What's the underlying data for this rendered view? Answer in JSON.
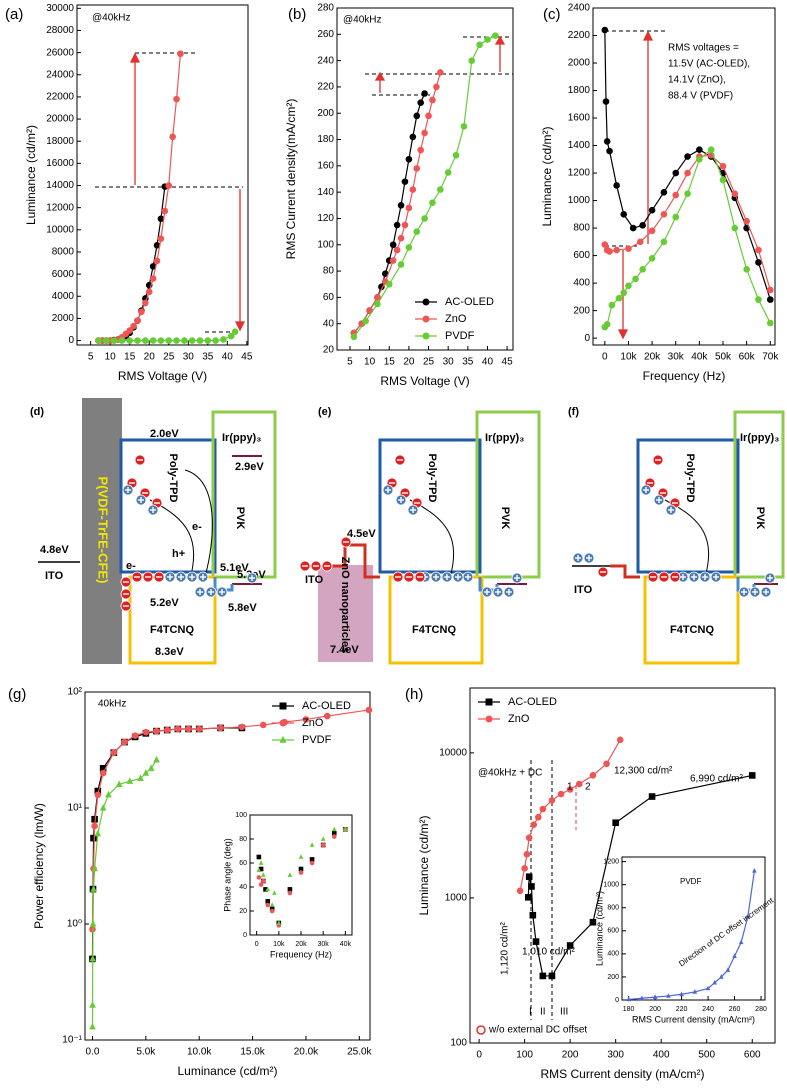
{
  "chart_data": [
    {
      "type": "line",
      "label": "(a)",
      "xlabel": "RMS Voltage (V)",
      "ylabel": "Luminance (cd/m²)",
      "annotations": [
        "@40kHz"
      ],
      "xlim": [
        1.5,
        45.3
      ],
      "xticks": [
        5,
        10,
        15,
        20,
        25,
        30,
        35,
        40,
        45
      ],
      "ylim": [
        -400,
        30300
      ],
      "yticks": [
        0,
        2000,
        4000,
        6000,
        8000,
        10000,
        12000,
        14000,
        16000,
        18000,
        20000,
        22000,
        24000,
        26000,
        28000,
        30000
      ],
      "series": [
        {
          "color": "#000000",
          "marker": "circle",
          "x": [
            7,
            8,
            9,
            10,
            11,
            12,
            13,
            14,
            15,
            16,
            17,
            18,
            19,
            20,
            21,
            22,
            23,
            24
          ],
          "values": [
            0,
            0,
            0,
            0,
            50,
            100,
            200,
            400,
            700,
            1200,
            1800,
            2700,
            3800,
            5000,
            6700,
            8600,
            11000,
            13900
          ]
        },
        {
          "color": "#f05555",
          "marker": "circle",
          "x": [
            7,
            8,
            9,
            10,
            11,
            12,
            13,
            14,
            15,
            16,
            17,
            18,
            19,
            20,
            21,
            22,
            23,
            24,
            25,
            26,
            27,
            28
          ],
          "values": [
            0,
            0,
            0,
            0,
            0,
            100,
            300,
            600,
            900,
            1300,
            1800,
            2600,
            3400,
            4400,
            5600,
            7200,
            9200,
            11700,
            14000,
            18400,
            21800,
            25900
          ]
        },
        {
          "color": "#66cc33",
          "marker": "circle",
          "x": [
            7,
            9,
            11,
            13,
            15,
            17,
            19,
            21,
            23,
            25,
            27,
            29,
            31,
            33,
            35,
            37,
            39,
            41,
            42
          ],
          "values": [
            0,
            0,
            0,
            0,
            0,
            0,
            0,
            0,
            0,
            0,
            0,
            0,
            0,
            0,
            0,
            0,
            100,
            400,
            800
          ]
        }
      ]
    },
    {
      "type": "line",
      "label": "(b)",
      "xlabel": "RMS Voltage (V)",
      "ylabel": "RMS Current density(mA/cm²)",
      "annotations": [
        "@40kHz"
      ],
      "legend": "lower right",
      "xlim": [
        1.7,
        46.5
      ],
      "xticks": [
        5,
        10,
        15,
        20,
        25,
        30,
        35,
        40,
        45
      ],
      "ylim": [
        20,
        280
      ],
      "yticks": [
        20,
        40,
        60,
        80,
        100,
        120,
        140,
        160,
        180,
        200,
        220,
        240,
        260,
        280
      ],
      "series": [
        {
          "name": "AC-OLED",
          "color": "#000000",
          "marker": "circle",
          "x": [
            6,
            8,
            10,
            12,
            13,
            14,
            15,
            16,
            17,
            18,
            19,
            20,
            21,
            22,
            23,
            24
          ],
          "values": [
            33,
            40,
            50,
            60,
            68,
            78,
            88,
            100,
            115,
            130,
            148,
            165,
            182,
            198,
            208,
            215
          ]
        },
        {
          "name": "ZnO",
          "color": "#f05555",
          "marker": "circle",
          "x": [
            6,
            8,
            10,
            12,
            14,
            16,
            17,
            18,
            19,
            20,
            21,
            22,
            23,
            24,
            25,
            26,
            27,
            28
          ],
          "values": [
            33,
            40,
            50,
            60,
            72,
            88,
            96,
            105,
            115,
            128,
            142,
            158,
            172,
            185,
            198,
            210,
            220,
            231
          ]
        },
        {
          "name": "PVDF",
          "color": "#66cc33",
          "marker": "circle",
          "x": [
            6,
            9,
            12,
            15,
            18,
            20,
            22,
            24,
            26,
            28,
            30,
            32,
            34,
            36,
            38,
            40,
            42
          ],
          "values": [
            30,
            42,
            55,
            70,
            85,
            98,
            110,
            120,
            132,
            142,
            155,
            168,
            190,
            240,
            252,
            256,
            259
          ]
        }
      ]
    },
    {
      "type": "line",
      "label": "(c)",
      "xlabel": "Frequency (Hz)",
      "ylabel": "Luminance (cd/m²)",
      "annotations": [
        "RMS voltages =",
        "11.5V (AC-OLED),",
        "14.1V (ZnO),",
        "88.4 V (PVDF)"
      ],
      "xlim": [
        -5000,
        72000
      ],
      "xticks": [
        0,
        {
          "value": 10000,
          "label": "10k"
        },
        {
          "value": 20000,
          "label": "20k"
        },
        {
          "value": 30000,
          "label": "30k"
        },
        {
          "value": 40000,
          "label": "40k"
        },
        {
          "value": 50000,
          "label": "50k"
        },
        {
          "value": 60000,
          "label": "60k"
        },
        {
          "value": 70000,
          "label": "70k"
        }
      ],
      "ylim": [
        -50,
        2400
      ],
      "yticks": [
        0,
        200,
        400,
        600,
        800,
        1000,
        1200,
        1400,
        1600,
        1800,
        2000,
        2200,
        2400
      ],
      "series": [
        {
          "color": "#000000",
          "marker": "circle",
          "x": [
            0,
            500,
            1000,
            2000,
            5000,
            8000,
            12000,
            16000,
            20000,
            25000,
            30000,
            35000,
            40000,
            45000,
            50000,
            55000,
            60000,
            65000,
            70000
          ],
          "values": [
            2240,
            1720,
            1430,
            1360,
            1110,
            900,
            800,
            820,
            930,
            1060,
            1200,
            1320,
            1370,
            1320,
            1200,
            1020,
            800,
            550,
            280
          ]
        },
        {
          "color": "#f05555",
          "marker": "circle",
          "x": [
            0,
            1000,
            2000,
            5000,
            10000,
            15000,
            20000,
            25000,
            30000,
            35000,
            40000,
            45000,
            50000,
            55000,
            60000,
            65000,
            70000
          ],
          "values": [
            680,
            640,
            630,
            640,
            650,
            700,
            780,
            900,
            1040,
            1200,
            1320,
            1330,
            1250,
            1050,
            850,
            640,
            350
          ]
        },
        {
          "color": "#66cc33",
          "marker": "circle",
          "x": [
            0,
            1000,
            3000,
            6000,
            8000,
            10000,
            13000,
            16000,
            20000,
            25000,
            30000,
            35000,
            40000,
            45000,
            50000,
            55000,
            60000,
            65000,
            70000
          ],
          "values": [
            80,
            100,
            240,
            290,
            330,
            380,
            430,
            500,
            580,
            700,
            880,
            1050,
            1300,
            1370,
            1150,
            800,
            500,
            280,
            110
          ]
        }
      ]
    },
    {
      "type": "line",
      "label": "(g)",
      "xlabel": "Luminance (cd/m²)",
      "ylabel": "Power efficiency (lm/W)",
      "annotations": [
        "40kHz"
      ],
      "legend": "upper right",
      "log_y": true,
      "xlim": [
        -700,
        26000
      ],
      "xticks": [
        {
          "value": 0,
          "label": "0.0"
        },
        {
          "value": 5000,
          "label": "5.0k"
        },
        {
          "value": 10000,
          "label": "10.0k"
        },
        {
          "value": 15000,
          "label": "15.0k"
        },
        {
          "value": 20000,
          "label": "20.0k"
        },
        {
          "value": 25000,
          "label": "25.0k"
        }
      ],
      "ylim": [
        0.1,
        100
      ],
      "yticks": [
        {
          "value": 0.1,
          "label": "10⁻¹"
        },
        {
          "value": 1,
          "label": "10⁰"
        },
        {
          "value": 10,
          "label": "10¹"
        },
        {
          "value": 100,
          "label": "10²"
        }
      ],
      "series": [
        {
          "name": "AC-OLED",
          "color": "#000000",
          "marker": "square",
          "x": [
            0,
            50,
            100,
            200,
            500,
            1000,
            2000,
            3000,
            4000,
            5000,
            6000,
            7000,
            8000,
            9000,
            10000,
            12000,
            14000
          ],
          "values": [
            0.5,
            2,
            5.5,
            8,
            14,
            22,
            30,
            37,
            41,
            44,
            46,
            47,
            48,
            48,
            48,
            49,
            49
          ]
        },
        {
          "name": "ZnO",
          "color": "#f05555",
          "marker": "circle",
          "x": [
            0,
            100,
            200,
            500,
            1000,
            2000,
            3000,
            4000,
            5000,
            6000,
            7000,
            8000,
            9000,
            10000,
            12000,
            14000,
            16000,
            18000,
            20000,
            22000,
            25900
          ],
          "values": [
            0.9,
            3,
            7,
            13,
            20,
            30,
            37,
            42,
            45,
            46,
            47,
            48,
            48,
            48,
            49,
            50,
            52,
            55,
            58,
            62,
            70
          ]
        },
        {
          "name": "PVDF",
          "color": "#66cc33",
          "marker": "triangle",
          "x": [
            0,
            10,
            20,
            50,
            100,
            200,
            500,
            1000,
            1500,
            2500,
            3500,
            4500,
            5000,
            5500,
            6000
          ],
          "values": [
            0.13,
            0.2,
            0.5,
            1,
            2,
            3,
            6,
            10,
            13,
            16,
            17,
            18,
            20,
            22,
            26
          ]
        }
      ],
      "inset": {
        "type": "scatter",
        "xlabel": "Frequency (Hz)",
        "ylabel": "Phase angle (deg)",
        "xlim": [
          -3000,
          43000
        ],
        "xticks": [
          0,
          {
            "value": 10000,
            "label": "10k"
          },
          {
            "value": 20000,
            "label": "20k"
          },
          {
            "value": 30000,
            "label": "30k"
          },
          {
            "value": 40000,
            "label": "40k"
          }
        ],
        "ylim": [
          0,
          100
        ],
        "yticks": [
          0,
          20,
          40,
          60,
          80,
          100
        ],
        "series": [
          {
            "color": "#000000",
            "marker": "square",
            "x": [
              1000,
              2000,
              3000,
              4000,
              5000,
              7000,
              10000,
              15000,
              20000,
              25000,
              30000,
              35000,
              40000
            ],
            "values": [
              65,
              55,
              45,
              38,
              28,
              22,
              10,
              38,
              55,
              63,
              75,
              85,
              88
            ]
          },
          {
            "color": "#f05555",
            "marker": "circle",
            "x": [
              1000,
              2000,
              3000,
              5000,
              7000,
              10000,
              15000,
              20000,
              25000,
              30000,
              35000,
              40000
            ],
            "values": [
              48,
              42,
              45,
              25,
              20,
              8,
              35,
              52,
              60,
              75,
              82,
              88
            ]
          },
          {
            "color": "#66cc33",
            "marker": "triangle",
            "x": [
              1000,
              2000,
              3000,
              5000,
              7000,
              8000,
              10000,
              15000,
              20000,
              25000,
              30000,
              35000,
              40000
            ],
            "values": [
              54,
              60,
              50,
              38,
              25,
              35,
              10,
              50,
              65,
              75,
              80,
              88,
              88
            ]
          }
        ]
      }
    },
    {
      "type": "line",
      "label": "(h)",
      "xlabel": "RMS Current density (mA/cm²)",
      "ylabel": "Luminance (cd/m²)",
      "annotations": [
        "@40kHz + DC",
        "12,300 cd/m²",
        "6,990 cd/m²",
        "1,010 cd/m²",
        "1,120 cd/m²",
        "I",
        "II",
        "III",
        "1",
        "2",
        "w/o external DC offset"
      ],
      "legend": "upper left",
      "log_y": true,
      "xlim": [
        -20,
        650
      ],
      "xticks": [
        0,
        100,
        200,
        300,
        400,
        500,
        600
      ],
      "ylim": [
        100,
        28000
      ],
      "yticks": [
        100,
        1000,
        10000
      ],
      "series": [
        {
          "name": "AC-OLED",
          "color": "#000000",
          "marker": "square",
          "x": [
            108,
            110,
            115,
            118,
            125,
            140,
            160,
            200,
            250,
            300,
            380,
            600
          ],
          "values": [
            1010,
            1400,
            1200,
            760,
            500,
            290,
            290,
            470,
            680,
            3300,
            5000,
            6990
          ]
        },
        {
          "name": "ZnO",
          "color": "#f05555",
          "marker": "circle",
          "x": [
            90,
            100,
            105,
            110,
            120,
            130,
            140,
            160,
            180,
            200,
            220,
            250,
            280,
            310
          ],
          "values": [
            1120,
            1600,
            2000,
            2600,
            3200,
            3600,
            4100,
            4700,
            5200,
            5600,
            6100,
            7000,
            8400,
            12300
          ]
        }
      ],
      "inset": {
        "type": "line",
        "xlabel": "RMS Current density (mA/cm²)",
        "ylabel": "Luminance (cd/m²)",
        "annotations": [
          "PVDF",
          "Direction of DC offset increment"
        ],
        "xlim": [
          175,
          283
        ],
        "xticks": [
          180,
          200,
          220,
          240,
          260,
          280
        ],
        "ylim": [
          0,
          1240
        ],
        "yticks": [
          0,
          200,
          400,
          600,
          800,
          1000,
          1200
        ],
        "series": [
          {
            "color": "#4a66dd",
            "marker": "triangle",
            "x": [
              180,
              190,
              200,
              210,
              220,
              230,
              240,
              245,
              250,
              255,
              260,
              265,
              270,
              275
            ],
            "values": [
              5,
              15,
              25,
              35,
              50,
              70,
              100,
              150,
              200,
              260,
              380,
              500,
              720,
              1120
            ]
          }
        ]
      }
    }
  ],
  "diagrams": [
    {
      "texts": [
        "(d)",
        "2.0eV",
        "Ir(ppy)₃",
        "2.9eV",
        "Poly-TPD",
        "PVK",
        "4.8eV",
        "ITO",
        "P(VDF-TrFE-CFE)",
        "e-",
        "h+",
        "e-",
        "5.1eV",
        "5.2eV",
        "5.3eV",
        "F4TCNQ",
        "5.8eV",
        "8.3eV"
      ]
    },
    {
      "texts": [
        "(e)",
        "Ir(ppy)₃",
        "Poly-TPD",
        "PVK",
        "4.5eV",
        "ITO",
        "ZnO nanoparticles",
        "F4TCNQ",
        "7.4eV"
      ]
    },
    {
      "texts": [
        "(f)",
        "Ir(ppy)₃",
        "Poly-TPD",
        "PVK",
        "ITO",
        "F4TCNQ"
      ]
    }
  ]
}
